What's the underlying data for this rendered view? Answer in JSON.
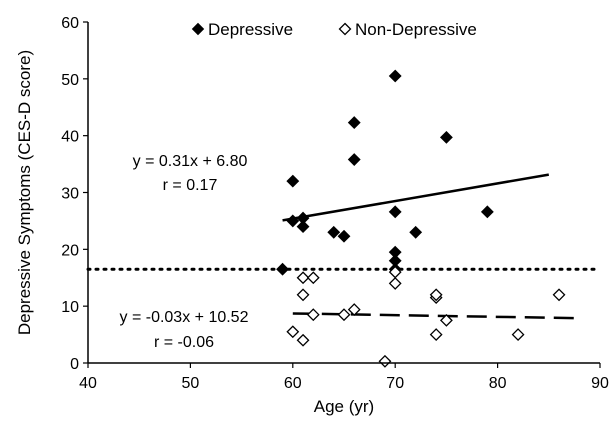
{
  "chart_data": {
    "type": "scatter",
    "xlabel": "Age (yr)",
    "ylabel": "Depressive Symptoms (CES-D score)",
    "xlim": [
      40,
      90
    ],
    "ylim": [
      0,
      60
    ],
    "x_ticks": [
      40,
      50,
      60,
      70,
      80,
      90
    ],
    "y_ticks": [
      0,
      10,
      20,
      30,
      40,
      50,
      60
    ],
    "x_tick_labels": [
      "40",
      "50",
      "60",
      "70",
      "80",
      "90"
    ],
    "y_tick_labels": [
      "0",
      "10",
      "20",
      "30",
      "40",
      "50",
      "60"
    ],
    "grid": false,
    "legend_position": "top",
    "series": [
      {
        "name": "Depressive",
        "marker": "filled-diamond",
        "color": "#000000",
        "points": [
          [
            59,
            16.5
          ],
          [
            60,
            32
          ],
          [
            60,
            25
          ],
          [
            61,
            24
          ],
          [
            61,
            25.5
          ],
          [
            64,
            23
          ],
          [
            65,
            22.3
          ],
          [
            66,
            42.3
          ],
          [
            66,
            35.8
          ],
          [
            70,
            50.5
          ],
          [
            70,
            26.6
          ],
          [
            70,
            19.5
          ],
          [
            70,
            18
          ],
          [
            70,
            16.5
          ],
          [
            72,
            23
          ],
          [
            75,
            39.7
          ],
          [
            79,
            26.6
          ]
        ],
        "fit": {
          "equation": "y = 0.31x + 6.80",
          "r": "r = 0.17",
          "slope": 0.31,
          "intercept": 6.8,
          "x_range": [
            59,
            85
          ],
          "style": "solid"
        }
      },
      {
        "name": "Non-Depressive",
        "marker": "open-diamond",
        "color": "#000000",
        "points": [
          [
            60,
            5.5
          ],
          [
            61,
            4
          ],
          [
            61,
            12
          ],
          [
            61,
            15
          ],
          [
            62,
            8.5
          ],
          [
            62,
            15
          ],
          [
            65,
            8.5
          ],
          [
            66,
            9.4
          ],
          [
            69,
            0.3
          ],
          [
            70,
            14
          ],
          [
            70,
            16
          ],
          [
            74,
            5
          ],
          [
            74,
            11.5
          ],
          [
            74,
            12
          ],
          [
            75,
            7.5
          ],
          [
            82,
            5
          ],
          [
            86,
            12
          ]
        ],
        "fit": {
          "equation": "y = -0.03x + 10.52",
          "r": "r = -0.06",
          "slope": -0.03,
          "intercept": 10.52,
          "x_range": [
            60,
            88
          ],
          "style": "dashed"
        }
      }
    ],
    "reference_line": {
      "y": 16.5,
      "style": "dotted"
    }
  }
}
